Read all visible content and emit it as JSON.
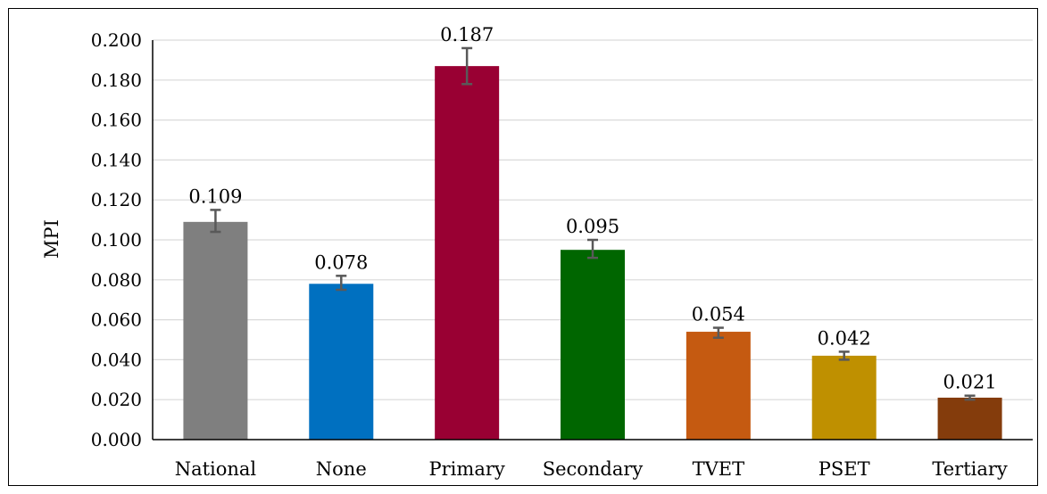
{
  "chart_data": {
    "type": "bar",
    "title": "",
    "xlabel": "",
    "ylabel": "MPI",
    "ylim": [
      0,
      0.2
    ],
    "yticks": [
      0.0,
      0.02,
      0.04,
      0.06,
      0.08,
      0.1,
      0.12,
      0.14,
      0.16,
      0.18,
      0.2
    ],
    "ytick_labels": [
      "0.000",
      "0.020",
      "0.040",
      "0.060",
      "0.080",
      "0.100",
      "0.120",
      "0.140",
      "0.160",
      "0.180",
      "0.200"
    ],
    "grid": true,
    "legend": "none",
    "categories": [
      "National",
      "None",
      "Primary",
      "Secondary",
      "TVET",
      "PSET",
      "Tertiary"
    ],
    "values": [
      0.109,
      0.078,
      0.187,
      0.095,
      0.054,
      0.042,
      0.021
    ],
    "value_labels": [
      "0.109",
      "0.078",
      "0.187",
      "0.095",
      "0.054",
      "0.042",
      "0.021"
    ],
    "error_low": [
      0.104,
      0.075,
      0.178,
      0.091,
      0.051,
      0.04,
      0.02
    ],
    "error_high": [
      0.115,
      0.082,
      0.196,
      0.1,
      0.056,
      0.044,
      0.022
    ],
    "colors": [
      "#7f7f7f",
      "#0070c0",
      "#990033",
      "#006600",
      "#c55a11",
      "#bf9000",
      "#843c0c"
    ],
    "errorbar_color": "#595959",
    "grid_color": "#d9d9d9"
  }
}
